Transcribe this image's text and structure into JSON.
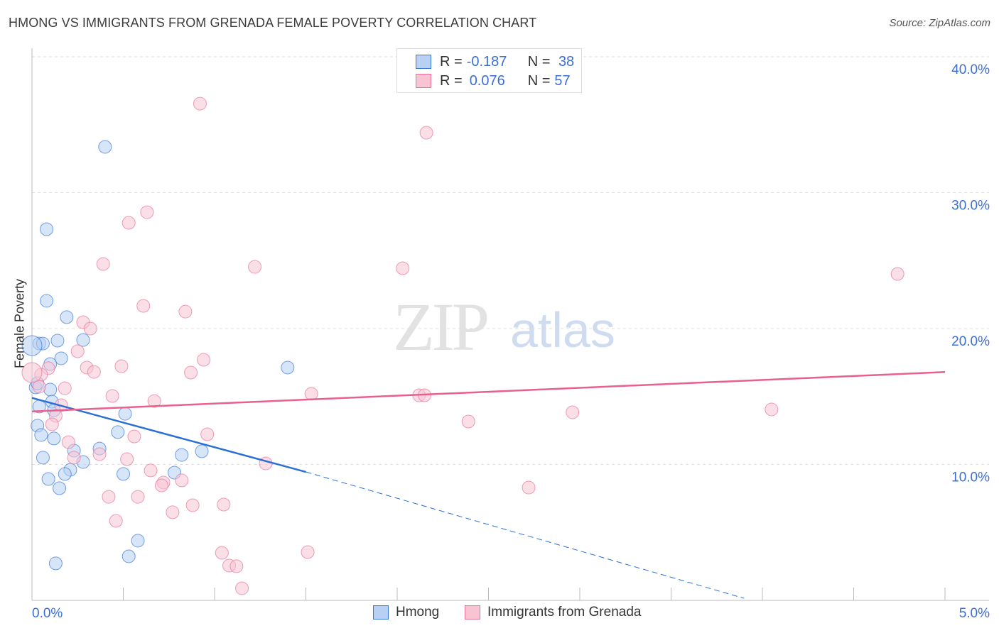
{
  "chart_data": {
    "type": "scatter",
    "title": "HMONG VS IMMIGRANTS FROM GRENADA FEMALE POVERTY CORRELATION CHART",
    "source": "Source: ZipAtlas.com",
    "xlabel": "",
    "ylabel": "Female Poverty",
    "xlim": [
      0,
      5
    ],
    "ylim": [
      0,
      40
    ],
    "x_tick_labels": [
      "0.0%",
      "5.0%"
    ],
    "y_tick_labels": [
      "10.0%",
      "20.0%",
      "30.0%",
      "40.0%"
    ],
    "y_ticks": [
      10,
      20,
      30,
      40
    ],
    "grid": true,
    "watermark": "ZIPatlas",
    "legend": {
      "position": "top-center",
      "entries": [
        {
          "r_label": "R = ",
          "r": "-0.187",
          "n_label": "N = ",
          "n": "38"
        },
        {
          "r_label": "R = ",
          "r": "0.076",
          "n_label": "N = ",
          "n": "57"
        }
      ]
    },
    "series": [
      {
        "name": "Hmong",
        "color": "#3a78d8",
        "fill": "#b7d0f3",
        "trend": {
          "x0": 0,
          "y0": 14.9,
          "x1": 1.5,
          "y1": 9.45,
          "dash_to_x": 3.9,
          "dash_to_y": 0.15
        },
        "points": [
          [
            0.4,
            33.37
          ],
          [
            0.08,
            27.31
          ],
          [
            0.08,
            22.04
          ],
          [
            0.19,
            20.84
          ],
          [
            0.04,
            18.9
          ],
          [
            0.06,
            18.9
          ],
          [
            0.14,
            19.11
          ],
          [
            0.28,
            19.16
          ],
          [
            0.0,
            18.75
          ],
          [
            0.16,
            17.81
          ],
          [
            0.1,
            17.39
          ],
          [
            1.4,
            17.13
          ],
          [
            0.1,
            15.51
          ],
          [
            0.02,
            15.67
          ],
          [
            0.03,
            15.98
          ],
          [
            0.11,
            14.62
          ],
          [
            0.04,
            14.26
          ],
          [
            0.12,
            13.99
          ],
          [
            0.51,
            13.73
          ],
          [
            0.03,
            12.85
          ],
          [
            0.05,
            12.17
          ],
          [
            0.47,
            12.38
          ],
          [
            0.12,
            11.91
          ],
          [
            0.23,
            11.02
          ],
          [
            0.37,
            11.17
          ],
          [
            0.93,
            10.97
          ],
          [
            0.06,
            10.5
          ],
          [
            0.82,
            10.7
          ],
          [
            0.28,
            10.18
          ],
          [
            0.21,
            9.61
          ],
          [
            0.18,
            9.3
          ],
          [
            0.5,
            9.3
          ],
          [
            0.78,
            9.4
          ],
          [
            0.09,
            8.93
          ],
          [
            0.15,
            8.25
          ],
          [
            0.58,
            4.39
          ],
          [
            0.53,
            3.24
          ],
          [
            0.13,
            2.72
          ]
        ]
      },
      {
        "name": "Immigrants from Grenada",
        "color": "#e8739a",
        "fill": "#f8c4d4",
        "trend": {
          "x0": 0,
          "y0": 13.9,
          "x1": 5,
          "y1": 16.8
        },
        "points": [
          [
            0.92,
            36.55
          ],
          [
            2.16,
            34.41
          ],
          [
            0.63,
            28.56
          ],
          [
            0.53,
            27.78
          ],
          [
            0.39,
            24.75
          ],
          [
            1.22,
            24.54
          ],
          [
            2.03,
            24.44
          ],
          [
            4.74,
            24.02
          ],
          [
            0.61,
            21.67
          ],
          [
            0.84,
            21.25
          ],
          [
            0.28,
            20.47
          ],
          [
            0.32,
            20.0
          ],
          [
            0.25,
            18.33
          ],
          [
            0.94,
            17.7
          ],
          [
            0.3,
            17.13
          ],
          [
            0.49,
            17.23
          ],
          [
            0.34,
            16.81
          ],
          [
            0.87,
            16.76
          ],
          [
            0.09,
            17.08
          ],
          [
            0.05,
            16.61
          ],
          [
            0.0,
            16.76
          ],
          [
            0.04,
            15.72
          ],
          [
            0.18,
            15.61
          ],
          [
            1.53,
            15.2
          ],
          [
            0.44,
            15.04
          ],
          [
            2.12,
            15.09
          ],
          [
            2.15,
            15.09
          ],
          [
            0.67,
            14.67
          ],
          [
            0.16,
            14.36
          ],
          [
            2.96,
            13.84
          ],
          [
            4.05,
            14.05
          ],
          [
            0.13,
            13.58
          ],
          [
            0.11,
            12.95
          ],
          [
            2.39,
            13.16
          ],
          [
            0.96,
            12.22
          ],
          [
            0.56,
            12.06
          ],
          [
            0.2,
            11.64
          ],
          [
            0.37,
            10.76
          ],
          [
            0.23,
            10.5
          ],
          [
            0.52,
            10.39
          ],
          [
            1.28,
            10.08
          ],
          [
            0.65,
            9.56
          ],
          [
            0.82,
            8.83
          ],
          [
            0.72,
            8.67
          ],
          [
            0.71,
            8.46
          ],
          [
            2.72,
            8.3
          ],
          [
            0.42,
            7.62
          ],
          [
            0.58,
            7.62
          ],
          [
            0.88,
            7.0
          ],
          [
            1.05,
            7.05
          ],
          [
            0.77,
            6.48
          ],
          [
            0.46,
            5.85
          ],
          [
            1.04,
            3.5
          ],
          [
            1.51,
            3.55
          ],
          [
            1.08,
            2.56
          ],
          [
            1.12,
            2.51
          ],
          [
            1.15,
            0.89
          ]
        ]
      }
    ]
  }
}
